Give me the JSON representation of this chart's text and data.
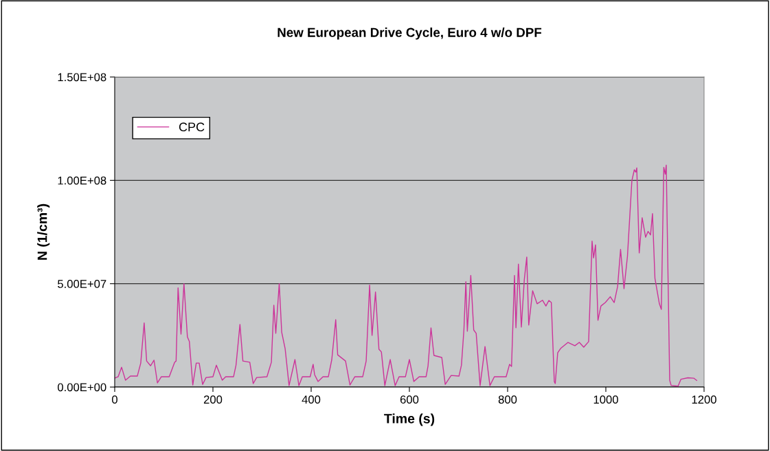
{
  "chart_data": {
    "type": "line",
    "title": "New European Drive Cycle, Euro 4 w/o DPF",
    "xlabel": "Time (s)",
    "ylabel": "N (1/cm³)",
    "xlim": [
      0,
      1200
    ],
    "xticks": [
      0,
      200,
      400,
      600,
      800,
      1000,
      1200
    ],
    "ylim": [
      0,
      150000000
    ],
    "yticks": [
      {
        "value": 0,
        "label": "0.00E+00"
      },
      {
        "value": 50000000,
        "label": "5.00E+07"
      },
      {
        "value": 100000000,
        "label": "1.00E+08"
      },
      {
        "value": 150000000,
        "label": "1.50E+08"
      }
    ],
    "grid": "y",
    "legend": "top left",
    "marker": "none",
    "line_style": "solid",
    "series": [
      {
        "name": "CPC",
        "color": "#cc3399",
        "x": [
          0,
          7,
          14,
          22,
          32,
          46,
          53,
          60,
          65,
          73,
          80,
          87,
          95,
          111,
          122,
          125,
          129,
          135,
          141,
          148,
          152,
          159,
          166,
          172,
          179,
          186,
          200,
          207,
          219,
          226,
          242,
          247,
          255,
          261,
          275,
          282,
          289,
          310,
          319,
          324,
          328,
          335,
          340,
          347,
          355,
          367,
          375,
          382,
          398,
          404,
          407,
          414,
          424,
          435,
          442,
          450,
          454,
          470,
          479,
          489,
          505,
          512,
          519,
          524,
          531,
          538,
          543,
          550,
          561,
          571,
          579,
          592,
          600,
          609,
          620,
          634,
          638,
          644,
          650,
          666,
          673,
          685,
          701,
          706,
          711,
          715,
          718,
          725,
          731,
          736,
          744,
          754,
          764,
          773,
          797,
          804,
          808,
          814,
          817,
          822,
          828,
          834,
          839,
          843,
          851,
          860,
          871,
          878,
          884,
          889,
          895,
          897,
          902,
          908,
          923,
          937,
          946,
          955,
          965,
          972,
          975,
          979,
          984,
          990,
          999,
          1009,
          1017,
          1024,
          1030,
          1037,
          1044,
          1053,
          1058,
          1061,
          1063,
          1068,
          1074,
          1081,
          1086,
          1091,
          1095,
          1100,
          1109,
          1113,
          1118,
          1121,
          1123,
          1130,
          1133,
          1147,
          1153,
          1167,
          1179,
          1185
        ],
        "values": [
          4300000,
          5000000,
          9600000,
          3300000,
          5300000,
          5300000,
          11600000,
          31000000,
          12600000,
          10300000,
          13000000,
          2000000,
          5000000,
          5000000,
          12000000,
          12600000,
          48000000,
          25600000,
          50000000,
          24300000,
          22000000,
          1000000,
          11600000,
          11600000,
          1300000,
          4600000,
          5000000,
          10600000,
          3300000,
          5000000,
          5000000,
          10600000,
          30300000,
          12600000,
          12000000,
          1700000,
          4600000,
          5000000,
          12000000,
          39600000,
          26000000,
          50000000,
          26600000,
          18600000,
          700000,
          13300000,
          700000,
          5000000,
          5000000,
          11000000,
          6000000,
          2700000,
          5000000,
          5000000,
          13300000,
          32600000,
          15600000,
          12600000,
          1000000,
          5000000,
          5000000,
          12600000,
          49300000,
          25000000,
          46000000,
          18300000,
          17000000,
          700000,
          13300000,
          700000,
          5000000,
          5000000,
          13300000,
          2700000,
          5000000,
          5000000,
          10300000,
          28600000,
          15300000,
          14300000,
          1300000,
          5600000,
          5300000,
          10600000,
          27600000,
          51000000,
          27000000,
          54000000,
          27600000,
          26000000,
          700000,
          19600000,
          700000,
          5000000,
          5000000,
          11000000,
          10000000,
          54000000,
          28700000,
          59500000,
          29000000,
          52000000,
          62900000,
          30000000,
          46600000,
          40300000,
          42000000,
          39200000,
          41900000,
          40900000,
          2700000,
          1700000,
          16600000,
          18700000,
          21600000,
          20000000,
          21600000,
          19300000,
          22000000,
          70600000,
          62500000,
          68800000,
          32300000,
          39200000,
          40900000,
          43700000,
          40900000,
          48700000,
          66600000,
          47600000,
          63200000,
          99800000,
          105100000,
          104000000,
          106000000,
          64900000,
          81900000,
          72500000,
          75300000,
          73600000,
          83900000,
          52600000,
          40300000,
          37600000,
          106300000,
          103000000,
          107400000,
          3300000,
          800000,
          400000,
          3800000,
          4500000,
          4300000,
          3200000
        ]
      }
    ]
  }
}
